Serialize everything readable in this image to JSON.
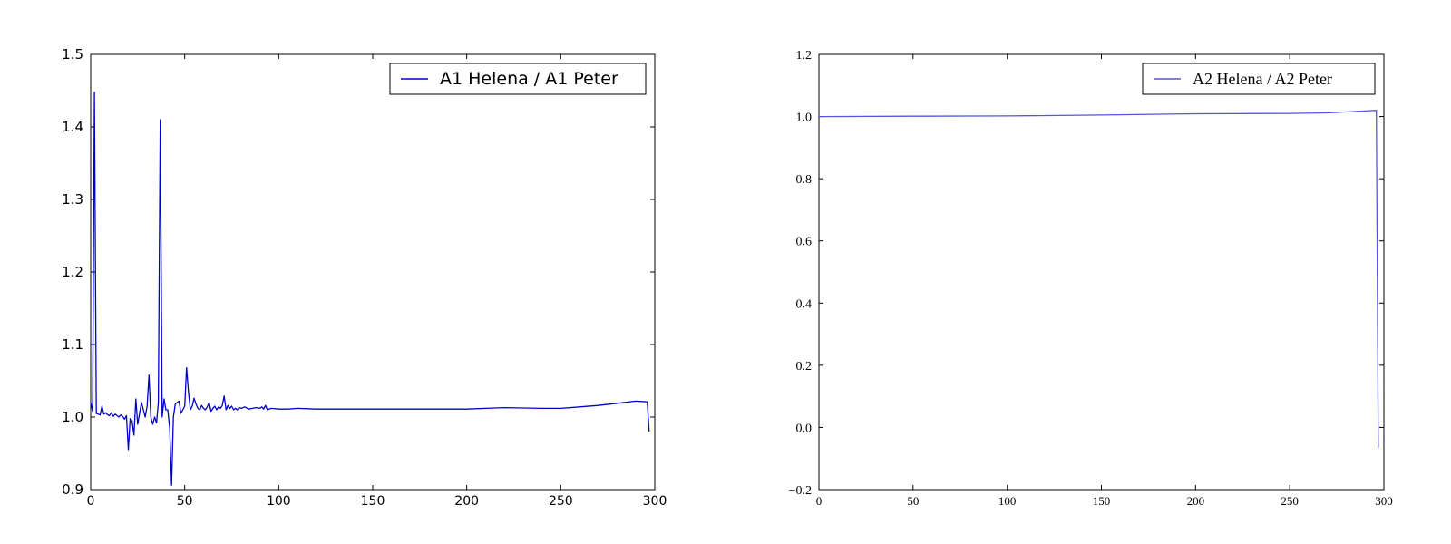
{
  "chart_data": [
    {
      "type": "line",
      "title": "",
      "xlabel": "",
      "ylabel": "",
      "xlim": [
        0,
        300
      ],
      "ylim": [
        0.9,
        1.5
      ],
      "xticks": [
        0,
        50,
        100,
        150,
        200,
        250,
        300
      ],
      "xtick_labels": [
        "0",
        "50",
        "100",
        "150",
        "200",
        "250",
        "300"
      ],
      "yticks": [
        0.9,
        1.0,
        1.1,
        1.2,
        1.3,
        1.4,
        1.5
      ],
      "ytick_labels": [
        "0.9",
        "1.0",
        "1.1",
        "1.2",
        "1.3",
        "1.4",
        "1.5"
      ],
      "grid": false,
      "legend_position": "top-right",
      "series": [
        {
          "name": "A1 Helena / A1 Peter",
          "color": "#0000cc",
          "x": [
            0,
            1,
            2,
            3,
            4,
            5,
            6,
            7,
            8,
            9,
            10,
            11,
            12,
            13,
            14,
            15,
            16,
            17,
            18,
            19,
            20,
            21,
            22,
            23,
            24,
            25,
            26,
            27,
            28,
            29,
            30,
            31,
            32,
            33,
            34,
            35,
            36,
            37,
            38,
            39,
            40,
            41,
            42,
            43,
            44,
            45,
            46,
            47,
            48,
            49,
            50,
            51,
            52,
            53,
            54,
            55,
            56,
            57,
            58,
            59,
            60,
            61,
            62,
            63,
            64,
            65,
            66,
            67,
            68,
            69,
            70,
            71,
            72,
            73,
            74,
            75,
            76,
            77,
            78,
            79,
            80,
            82,
            84,
            86,
            88,
            90,
            91,
            92,
            93,
            94,
            96,
            100,
            105,
            110,
            120,
            130,
            150,
            175,
            200,
            210,
            220,
            240,
            250,
            260,
            270,
            280,
            290,
            296,
            297
          ],
          "y": [
            1.02,
            1.008,
            1.448,
            1.005,
            1.004,
            1.003,
            1.015,
            1.004,
            1.006,
            1.003,
            1.002,
            1.006,
            1.001,
            1.004,
            1.002,
            1.0,
            1.003,
            1.001,
            0.997,
            1.002,
            0.955,
            0.998,
            0.995,
            0.975,
            1.025,
            0.99,
            1.005,
            1.02,
            1.01,
            1.0,
            1.015,
            1.058,
            1.0,
            0.99,
            1.0,
            0.992,
            1.02,
            1.41,
            1.0,
            1.025,
            1.01,
            1.01,
            0.985,
            0.906,
            1.0,
            1.018,
            1.02,
            1.022,
            1.005,
            1.01,
            1.015,
            1.068,
            1.035,
            1.01,
            1.015,
            1.026,
            1.018,
            1.012,
            1.01,
            1.016,
            1.012,
            1.01,
            1.014,
            1.02,
            1.008,
            1.012,
            1.015,
            1.01,
            1.014,
            1.012,
            1.016,
            1.029,
            1.01,
            1.016,
            1.012,
            1.015,
            1.01,
            1.012,
            1.01,
            1.013,
            1.012,
            1.014,
            1.011,
            1.012,
            1.013,
            1.012,
            1.014,
            1.011,
            1.016,
            1.01,
            1.012,
            1.011,
            1.011,
            1.012,
            1.011,
            1.011,
            1.011,
            1.011,
            1.011,
            1.012,
            1.013,
            1.012,
            1.012,
            1.014,
            1.016,
            1.019,
            1.022,
            1.021,
            0.98
          ]
        }
      ]
    },
    {
      "type": "line",
      "title": "",
      "xlabel": "",
      "ylabel": "",
      "xlim": [
        0,
        300
      ],
      "ylim": [
        -0.2,
        1.2
      ],
      "xticks": [
        0,
        50,
        100,
        150,
        200,
        250,
        300
      ],
      "xtick_labels": [
        "0",
        "50",
        "100",
        "150",
        "200",
        "250",
        "300"
      ],
      "yticks": [
        -0.2,
        0.0,
        0.2,
        0.4,
        0.6,
        0.8,
        1.0,
        1.2
      ],
      "ytick_labels": [
        "−0.2",
        "0.0",
        "0.2",
        "0.4",
        "0.6",
        "0.8",
        "1.0",
        "1.2"
      ],
      "grid": false,
      "legend_position": "top-right",
      "series": [
        {
          "name": "A2 Helena / A2 Peter",
          "color": "#5555dd",
          "x": [
            0,
            50,
            100,
            150,
            200,
            250,
            270,
            290,
            296,
            297
          ],
          "y": [
            1.0,
            1.001,
            1.002,
            1.005,
            1.009,
            1.01,
            1.012,
            1.018,
            1.02,
            -0.065
          ]
        }
      ]
    }
  ]
}
